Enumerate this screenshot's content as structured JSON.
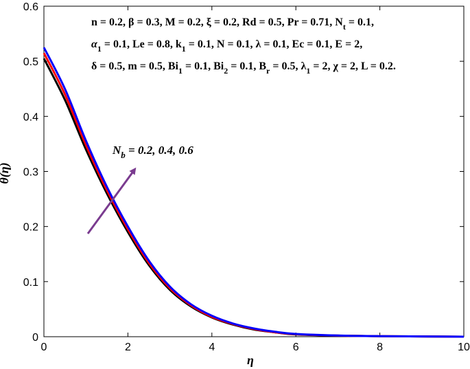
{
  "chart_data": {
    "type": "line",
    "xlabel": "η",
    "ylabel": "θ(η)",
    "xlim": [
      0,
      10
    ],
    "ylim": [
      0,
      0.6
    ],
    "x_ticks": [
      "0",
      "2",
      "4",
      "6",
      "8",
      "10"
    ],
    "y_ticks": [
      "0",
      "0.1",
      "0.2",
      "0.3",
      "0.4",
      "0.5",
      "0.6"
    ],
    "grid": false,
    "series": [
      {
        "color": "#000000",
        "x": [
          0,
          0.5,
          1,
          1.5,
          2,
          2.5,
          3,
          3.5,
          4,
          4.5,
          5,
          5.5,
          6,
          7,
          8,
          9,
          10
        ],
        "values": [
          0.505,
          0.43,
          0.34,
          0.26,
          0.19,
          0.13,
          0.085,
          0.055,
          0.035,
          0.022,
          0.013,
          0.008,
          0.004,
          0.002,
          0.001,
          0.0005,
          0.0
        ]
      },
      {
        "color": "#ff0000",
        "x": [
          0,
          0.5,
          1,
          1.5,
          2,
          2.5,
          3,
          3.5,
          4,
          4.5,
          5,
          5.5,
          6,
          7,
          8,
          9,
          10
        ],
        "values": [
          0.515,
          0.44,
          0.348,
          0.266,
          0.195,
          0.134,
          0.088,
          0.057,
          0.036,
          0.023,
          0.014,
          0.008,
          0.0045,
          0.002,
          0.001,
          0.0005,
          0.0
        ]
      },
      {
        "color": "#0000ff",
        "x": [
          0,
          0.5,
          1,
          1.5,
          2,
          2.5,
          3,
          3.5,
          4,
          4.5,
          5,
          5.5,
          6,
          7,
          8,
          9,
          10
        ],
        "values": [
          0.525,
          0.45,
          0.356,
          0.272,
          0.2,
          0.138,
          0.091,
          0.059,
          0.038,
          0.024,
          0.015,
          0.009,
          0.005,
          0.0022,
          0.001,
          0.0005,
          0.0
        ]
      }
    ],
    "annotations": {
      "params_line1": "n = 0.2, β = 0.3, M = 0.2, ξ = 0.2, Rd = 0.5, Pr = 0.71, N",
      "params_line1_sub": "t",
      "params_line1_tail": " = 0.1,",
      "params_line2_a": "α",
      "params_line2_a_sub": "1",
      "params_line2_b": " = 0.1, Le = 0.8, k",
      "params_line2_b_sub": "1",
      "params_line2_c": " = 0.1, N = 0.1, λ = 0.1, Ec = 0.1, E = 2,",
      "params_line3_a": "δ = 0.5, m = 0.5, Bi",
      "params_line3_a_sub": "1",
      "params_line3_b": " = 0.1, Bi",
      "params_line3_b_sub": "2",
      "params_line3_c": " = 0.1, B",
      "params_line3_c_sub": "r",
      "params_line3_d": " = 0.5, λ",
      "params_line3_d_sub": "1",
      "params_line3_e": " = 2, χ = 2, L = 0.2.",
      "arrow_label_main": "N",
      "arrow_label_sub": "b",
      "arrow_label_tail": " = 0.2, 0.4, 0.6",
      "arrow_color": "#7a3b8f"
    }
  }
}
